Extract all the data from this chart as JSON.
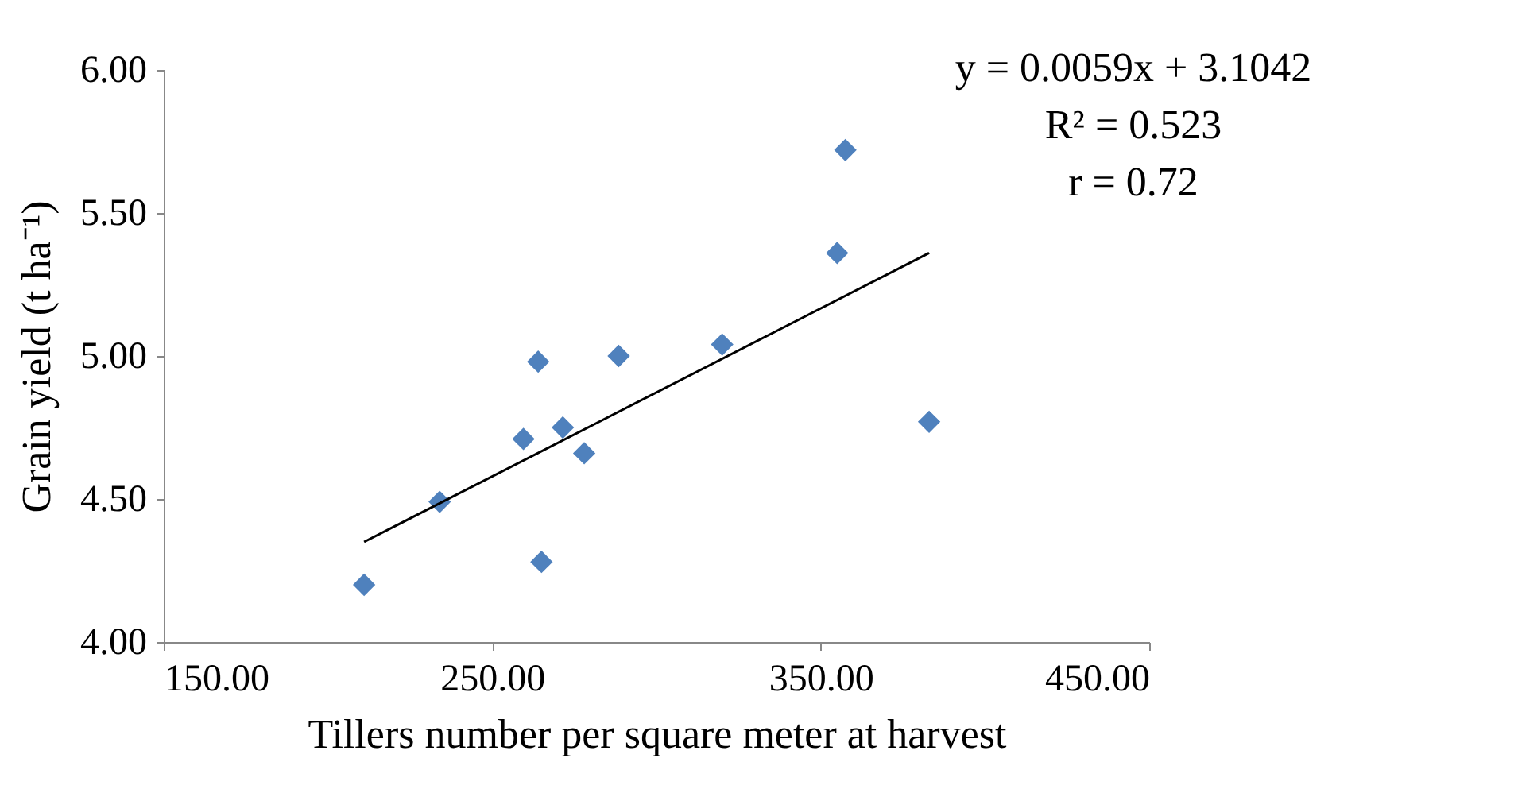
{
  "chart_data": {
    "type": "scatter",
    "xlabel": "Tillers number per square meter at harvest",
    "ylabel": "Grain yield (t ha⁻¹)",
    "annotations": [
      "y = 0.0059x + 3.1042",
      "R² = 0.523",
      "r = 0.72"
    ],
    "xlim": [
      150,
      450
    ],
    "xticks": [
      {
        "value": 150,
        "label": "150.00"
      },
      {
        "value": 250,
        "label": "250.00"
      },
      {
        "value": 350,
        "label": "350.00"
      },
      {
        "value": 450,
        "label": "450.00"
      }
    ],
    "ylim": [
      4,
      6
    ],
    "yticks": [
      {
        "value": 4,
        "label": "4.00"
      },
      {
        "value": 4.5,
        "label": "4.50"
      },
      {
        "value": 5,
        "label": "5.00"
      },
      {
        "value": 5.5,
        "label": "5.50"
      },
      {
        "value": 6,
        "label": "6.00"
      }
    ],
    "grid": false,
    "series": [
      {
        "type": "scatter",
        "color": "#4f81bd",
        "marker": "diamond",
        "x": [
          211,
          234,
          259.5,
          264,
          265,
          271.5,
          278,
          288.5,
          320,
          355,
          357.5,
          383
        ],
        "values": [
          4.2,
          4.49,
          4.71,
          4.98,
          4.28,
          4.75,
          4.66,
          5.0,
          5.04,
          5.36,
          5.72,
          4.77
        ]
      },
      {
        "type": "line",
        "color": "#000000",
        "line_style": "solid",
        "marker": "none",
        "x": [
          211,
          383
        ],
        "values": [
          4.35,
          5.36
        ]
      }
    ]
  }
}
